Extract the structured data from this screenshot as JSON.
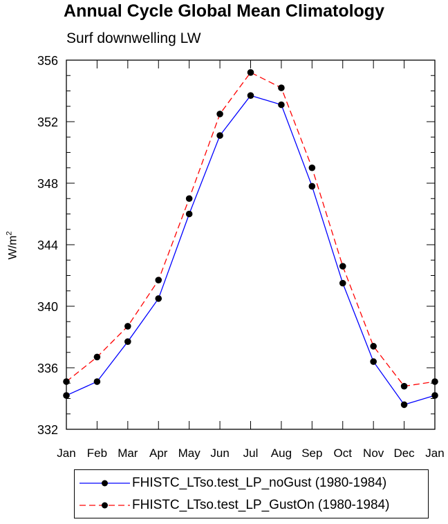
{
  "chart_data": {
    "type": "line",
    "title": "Annual Cycle Global Mean Climatology",
    "subtitle": "Surf downwelling LW",
    "ylabel_base": "W/m",
    "ylabel_sup": "2",
    "xlabel": "",
    "categories": [
      "Jan",
      "Feb",
      "Mar",
      "Apr",
      "May",
      "Jun",
      "Jul",
      "Aug",
      "Sep",
      "Oct",
      "Nov",
      "Dec",
      "Jan"
    ],
    "yticks": [
      332,
      336,
      340,
      344,
      348,
      352,
      356
    ],
    "ylim": [
      332,
      356
    ],
    "grid": false,
    "legend_position": "bottom",
    "series": [
      {
        "name": "FHISTC_LTso.test_LP_noGust (1980-1984)",
        "color": "#0000ff",
        "dash": "solid",
        "values": [
          334.2,
          335.1,
          337.7,
          340.5,
          346.0,
          351.1,
          353.7,
          353.1,
          347.8,
          341.5,
          336.4,
          333.6,
          334.2
        ]
      },
      {
        "name": "FHISTC_LTso.test_LP_GustOn (1980-1984)",
        "color": "#ff0000",
        "dash": "dashed",
        "values": [
          335.1,
          336.7,
          338.7,
          341.7,
          347.0,
          352.5,
          355.2,
          354.2,
          349.0,
          342.6,
          337.4,
          334.8,
          335.1
        ]
      }
    ]
  }
}
